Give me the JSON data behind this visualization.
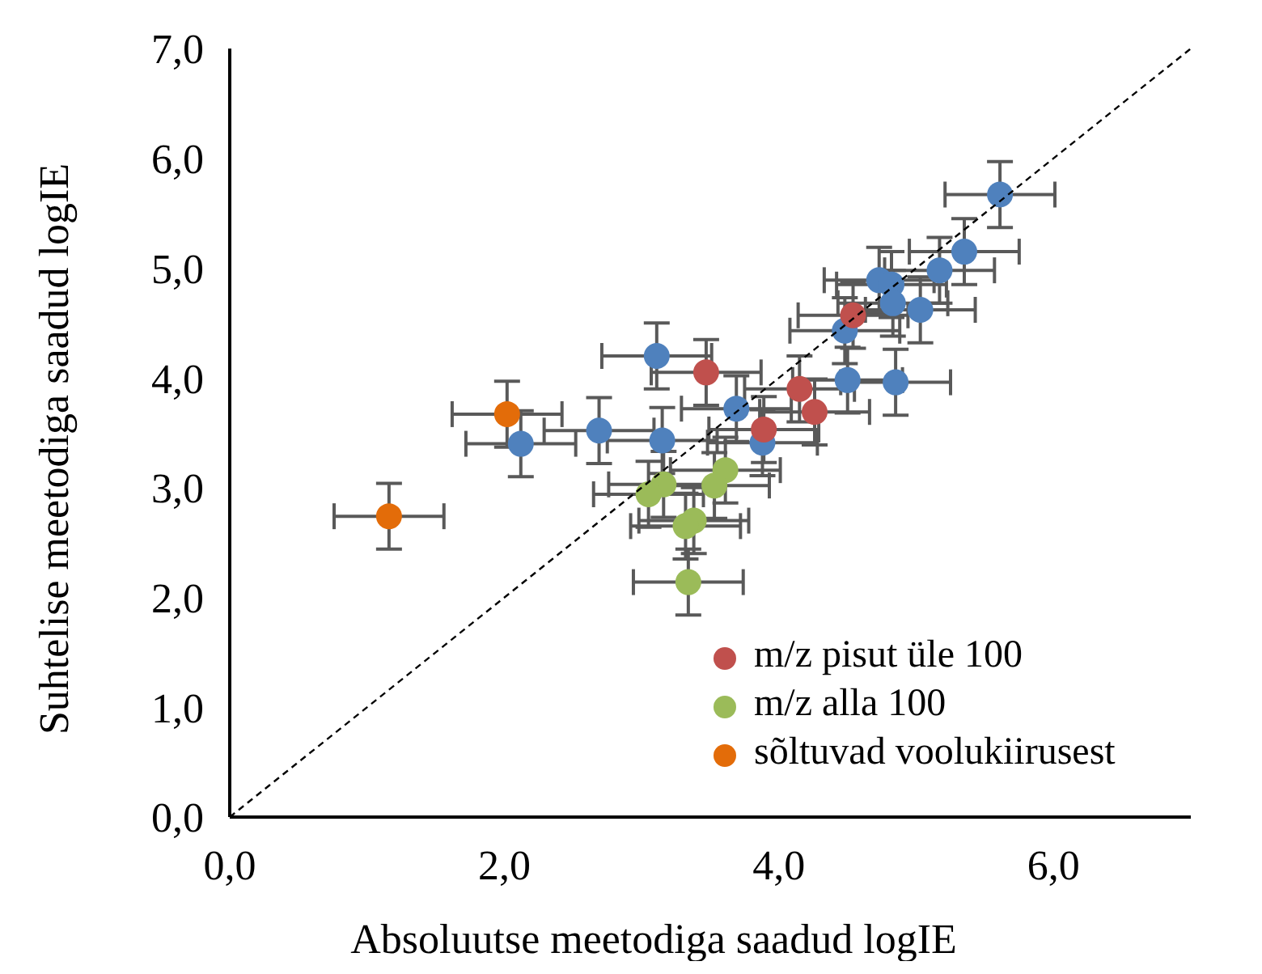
{
  "chart_data": {
    "type": "scatter",
    "xlabel": "Absoluutse meetodiga saadud logIE",
    "ylabel": "Suhtelise meetodiga saadud logIE",
    "xlim": [
      0,
      7
    ],
    "xticks": [
      {
        "value": 0,
        "label": "0,0"
      },
      {
        "value": 2,
        "label": "2,0"
      },
      {
        "value": 4,
        "label": "4,0"
      },
      {
        "value": 6,
        "label": "6,0"
      }
    ],
    "ylim": [
      0,
      7
    ],
    "yticks": [
      {
        "value": 0,
        "label": "0,0"
      },
      {
        "value": 1,
        "label": "1,0"
      },
      {
        "value": 2,
        "label": "2,0"
      },
      {
        "value": 3,
        "label": "3,0"
      },
      {
        "value": 4,
        "label": "4,0"
      },
      {
        "value": 5,
        "label": "5,0"
      },
      {
        "value": 6,
        "label": "6,0"
      },
      {
        "value": 7,
        "label": "7,0"
      }
    ],
    "grid": false,
    "legend": "bottom right",
    "marker": "circle",
    "series": [
      {
        "color": "#4f81bd",
        "x": [
          5.61,
          5.35,
          5.17,
          4.73,
          4.82,
          4.83,
          5.03,
          4.48,
          3.11,
          4.5,
          4.85,
          3.69,
          2.12,
          2.69,
          3.15,
          3.88
        ],
        "values": [
          5.67,
          5.15,
          4.98,
          4.89,
          4.85,
          4.68,
          4.62,
          4.43,
          4.2,
          3.98,
          3.96,
          3.72,
          3.4,
          3.52,
          3.43,
          3.41
        ],
        "errors": [
          0.3,
          0.3,
          0.3,
          0.3,
          0.3,
          0.3,
          0.3,
          0.3,
          0.3,
          0.3,
          0.3,
          0.3,
          0.3,
          0.3,
          0.3,
          0.3
        ],
        "xerrors": [
          0.4,
          0.4,
          0.4,
          0.4,
          0.4,
          0.4,
          0.4,
          0.4,
          0.4,
          0.4,
          0.4,
          0.4,
          0.4,
          0.4,
          0.4,
          0.4
        ]
      },
      {
        "name": "m/z pisut üle 100",
        "color": "#c0504d",
        "x": [
          4.54,
          3.47,
          4.15,
          4.26,
          3.89
        ],
        "values": [
          4.57,
          4.05,
          3.9,
          3.69,
          3.53
        ],
        "errors": [
          0.3,
          0.3,
          0.3,
          0.3,
          0.3
        ],
        "xerrors": [
          0.4,
          0.4,
          0.4,
          0.4,
          0.4
        ]
      },
      {
        "name": "m/z alla 100",
        "color": "#9bbb59",
        "x": [
          3.16,
          3.05,
          3.61,
          3.53,
          3.38,
          3.32,
          3.34
        ],
        "values": [
          3.03,
          2.94,
          3.16,
          3.02,
          2.7,
          2.65,
          2.14
        ],
        "errors": [
          0.3,
          0.3,
          0.3,
          0.3,
          0.3,
          0.3,
          0.3
        ],
        "xerrors": [
          0.4,
          0.4,
          0.4,
          0.4,
          0.4,
          0.4,
          0.4
        ]
      },
      {
        "name": "sõltuvad voolukiirusest",
        "color": "#e36c09",
        "x": [
          2.02,
          1.16
        ],
        "values": [
          3.67,
          2.74
        ],
        "errors": [
          0.3,
          0.3
        ],
        "xerrors": [
          0.4,
          0.4
        ]
      },
      {
        "type": "line",
        "color": "#000000",
        "line_style": "dashed",
        "marker": "none",
        "x": [
          0,
          7
        ],
        "values": [
          0,
          7
        ]
      }
    ]
  }
}
